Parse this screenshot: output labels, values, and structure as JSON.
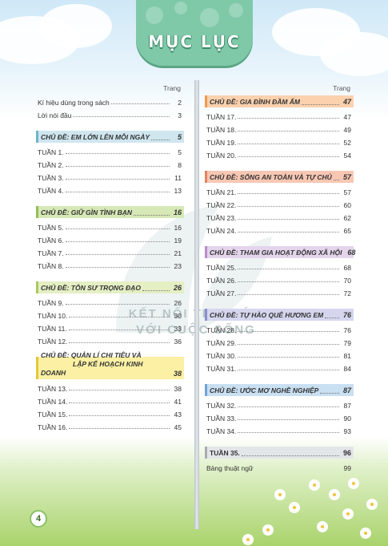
{
  "banner": {
    "title": "MỤC LỤC"
  },
  "watermark": {
    "line1": "KẾT NỐI TRI THỨC",
    "line2": "VỚI CUỘC SỐNG"
  },
  "page_number": "4",
  "colors": {
    "topic1": "#cfe6ef",
    "topic2": "#d6e8b6",
    "topic3": "#e4efc4",
    "topic4": "#fbf0a3",
    "topic5": "#fbd1ae",
    "topic6": "#f8c7b3",
    "topic7": "#e4d4ec",
    "topic8": "#d5d6ee",
    "topic9": "#c9dff2",
    "topic10": "#e3e6e8"
  },
  "left": {
    "trang": "Trang",
    "intro": [
      {
        "label": "Kí hiệu dùng trong sách",
        "page": "2"
      },
      {
        "label": "Lời nói đầu",
        "page": "3"
      }
    ],
    "topics": [
      {
        "title": "CHỦ ĐỀ: EM LỚN LÊN MỖI NGÀY",
        "page": "5",
        "weeks": [
          {
            "label": "TUẦN 1.",
            "page": "5"
          },
          {
            "label": "TUẦN 2.",
            "page": "8"
          },
          {
            "label": "TUẦN 3.",
            "page": "11"
          },
          {
            "label": "TUẦN 4.",
            "page": "13"
          }
        ]
      },
      {
        "title": "CHỦ ĐỀ: GIỮ GÌN TÌNH BẠN",
        "page": "16",
        "weeks": [
          {
            "label": "TUẦN 5.",
            "page": "16"
          },
          {
            "label": "TUẦN 6.",
            "page": "19"
          },
          {
            "label": "TUẦN 7.",
            "page": "21"
          },
          {
            "label": "TUẦN 8.",
            "page": "23"
          }
        ]
      },
      {
        "title": "CHỦ ĐỀ: TÔN SƯ TRỌNG ĐẠO",
        "page": "26",
        "weeks": [
          {
            "label": "TUẦN 9.",
            "page": "26"
          },
          {
            "label": "TUẦN 10.",
            "page": "30"
          },
          {
            "label": "TUẦN 11.",
            "page": "33"
          },
          {
            "label": "TUẦN 12.",
            "page": "36"
          }
        ]
      },
      {
        "title_line1": "CHỦ ĐỀ: QUẢN LÍ CHI TIÊU VÀ",
        "title_line2": "LẬP KẾ HOẠCH KINH DOANH",
        "page": "38",
        "weeks": [
          {
            "label": "TUẦN 13.",
            "page": "38"
          },
          {
            "label": "TUẦN 14.",
            "page": "41"
          },
          {
            "label": "TUẦN 15.",
            "page": "43"
          },
          {
            "label": "TUẦN 16.",
            "page": "45"
          }
        ]
      }
    ]
  },
  "right": {
    "trang": "Trang",
    "topics": [
      {
        "title": "CHỦ ĐỀ: GIA ĐÌNH ĐẦM ẤM",
        "page": "47",
        "weeks": [
          {
            "label": "TUẦN 17.",
            "page": "47"
          },
          {
            "label": "TUẦN 18.",
            "page": "49"
          },
          {
            "label": "TUẦN 19.",
            "page": "52"
          },
          {
            "label": "TUẦN 20.",
            "page": "54"
          }
        ]
      },
      {
        "title": "CHỦ ĐỀ: SỐNG AN TOÀN VÀ TỰ CHỦ",
        "page": "57",
        "weeks": [
          {
            "label": "TUẦN 21.",
            "page": "57"
          },
          {
            "label": "TUẦN 22.",
            "page": "60"
          },
          {
            "label": "TUẦN 23.",
            "page": "62"
          },
          {
            "label": "TUẦN 24.",
            "page": "65"
          }
        ]
      },
      {
        "title": "CHỦ ĐỀ: THAM GIA HOẠT ĐỘNG XÃ HỘI",
        "page": "68",
        "weeks": [
          {
            "label": "TUẦN 25.",
            "page": "68"
          },
          {
            "label": "TUẦN 26.",
            "page": "70"
          },
          {
            "label": "TUẦN 27.",
            "page": "72"
          }
        ]
      },
      {
        "title": "CHỦ ĐỀ: TỰ HÀO QUÊ HƯƠNG EM",
        "page": "76",
        "weeks": [
          {
            "label": "TUẦN 28.",
            "page": "76"
          },
          {
            "label": "TUẦN 29.",
            "page": "79"
          },
          {
            "label": "TUẦN 30.",
            "page": "81"
          },
          {
            "label": "TUẦN 31.",
            "page": "84"
          }
        ]
      },
      {
        "title": "CHỦ ĐỀ: ƯỚC MƠ NGHỀ NGHIỆP",
        "page": "87",
        "weeks": [
          {
            "label": "TUẦN 32.",
            "page": "87"
          },
          {
            "label": "TUẦN 33.",
            "page": "90"
          },
          {
            "label": "TUẦN 34.",
            "page": "93"
          }
        ]
      },
      {
        "title": "TUẦN 35.",
        "page": "96",
        "weeks": [
          {
            "label": "Bảng thuật ngữ",
            "page": "99"
          }
        ]
      }
    ]
  }
}
